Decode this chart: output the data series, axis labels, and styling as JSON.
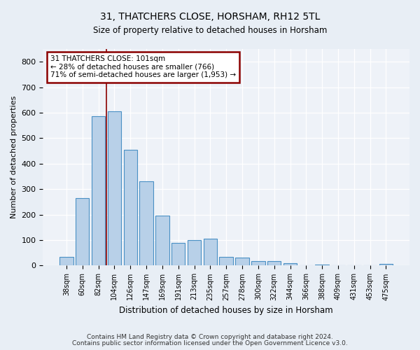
{
  "title1": "31, THATCHERS CLOSE, HORSHAM, RH12 5TL",
  "title2": "Size of property relative to detached houses in Horsham",
  "xlabel": "Distribution of detached houses by size in Horsham",
  "ylabel": "Number of detached properties",
  "bar_labels": [
    "38sqm",
    "60sqm",
    "82sqm",
    "104sqm",
    "126sqm",
    "147sqm",
    "169sqm",
    "191sqm",
    "213sqm",
    "235sqm",
    "257sqm",
    "278sqm",
    "300sqm",
    "322sqm",
    "344sqm",
    "366sqm",
    "388sqm",
    "409sqm",
    "431sqm",
    "453sqm",
    "475sqm"
  ],
  "bar_values": [
    35,
    265,
    585,
    605,
    455,
    330,
    195,
    90,
    100,
    105,
    35,
    32,
    17,
    17,
    10,
    0,
    5,
    0,
    0,
    0,
    7
  ],
  "bar_color": "#b8d0e8",
  "bar_edge_color": "#4a90c4",
  "vline_x": 2.5,
  "vline_color": "#8b0000",
  "annotation_line1": "31 THATCHERS CLOSE: 101sqm",
  "annotation_line2": "← 28% of detached houses are smaller (766)",
  "annotation_line3": "71% of semi-detached houses are larger (1,953) →",
  "annotation_box_edgecolor": "#8b0000",
  "ylim": [
    0,
    850
  ],
  "yticks": [
    0,
    100,
    200,
    300,
    400,
    500,
    600,
    700,
    800
  ],
  "footer1": "Contains HM Land Registry data © Crown copyright and database right 2024.",
  "footer2": "Contains public sector information licensed under the Open Government Licence v3.0.",
  "bg_color": "#e8eef5",
  "plot_bg_color": "#eef2f8"
}
